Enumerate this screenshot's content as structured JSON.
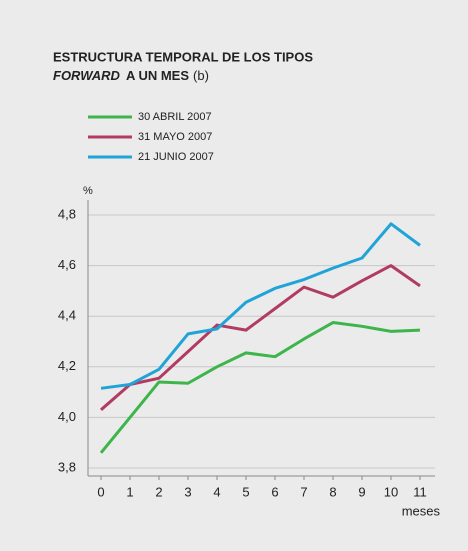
{
  "chart_data": {
    "type": "line",
    "title": [
      "ESTRUCTURA TEMPORAL DE LOS TIPOS",
      "FORWARD",
      "A UN MES",
      "(b)"
    ],
    "y_label": "%",
    "x_label": "meses",
    "x": [
      0,
      1,
      2,
      3,
      4,
      5,
      6,
      7,
      8,
      9,
      10,
      11
    ],
    "xlim": [
      0,
      11
    ],
    "xticks": [
      0,
      1,
      2,
      3,
      4,
      5,
      6,
      7,
      8,
      9,
      10,
      11
    ],
    "ylim": [
      3.8,
      4.8
    ],
    "yticks": [
      {
        "value": 3.8,
        "label": "3,8"
      },
      {
        "value": 4.0,
        "label": "4,0"
      },
      {
        "value": 4.2,
        "label": "4,2"
      },
      {
        "value": 4.4,
        "label": "4,4"
      },
      {
        "value": 4.6,
        "label": "4,6"
      },
      {
        "value": 4.8,
        "label": "4,8"
      }
    ],
    "grid": true,
    "series": [
      {
        "name": "30 ABRIL 2007",
        "color": "#3db54a",
        "values": [
          3.86,
          4.0,
          4.14,
          4.135,
          4.2,
          4.255,
          4.24,
          4.31,
          4.375,
          4.36,
          4.34,
          4.345
        ]
      },
      {
        "name": "31 MAYO 2007",
        "color": "#b13b62",
        "values": [
          4.03,
          4.13,
          4.155,
          4.26,
          4.365,
          4.345,
          4.43,
          4.515,
          4.475,
          4.54,
          4.6,
          4.52
        ]
      },
      {
        "name": "21 JUNIO 2007",
        "color": "#20a4d8",
        "values": [
          4.115,
          4.13,
          4.19,
          4.33,
          4.35,
          4.455,
          4.51,
          4.545,
          4.59,
          4.63,
          4.765,
          4.68
        ]
      }
    ]
  }
}
